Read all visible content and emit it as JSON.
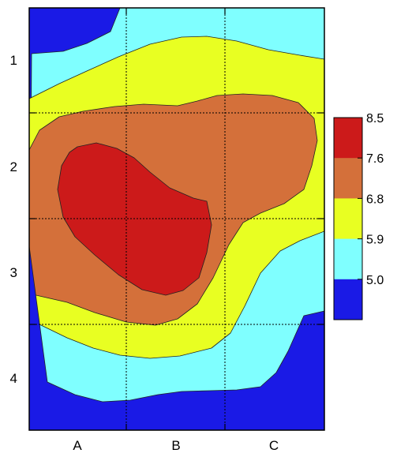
{
  "chart_data": {
    "type": "contour",
    "title": "",
    "xlabel": "",
    "ylabel": "",
    "x_ticks": [
      "A",
      "B",
      "C"
    ],
    "y_ticks": [
      "1",
      "2",
      "3",
      "4"
    ],
    "grid": true,
    "colorbar": {
      "placement": "right",
      "ticks": [
        "8.5",
        "7.6",
        "6.8",
        "5.9",
        "5.0"
      ],
      "levels": [
        {
          "range": [
            8.5,
            7.6
          ],
          "color": "#cc1a1a"
        },
        {
          "range": [
            7.6,
            6.8
          ],
          "color": "#d4703a"
        },
        {
          "range": [
            6.8,
            5.9
          ],
          "color": "#e8ff22"
        },
        {
          "range": [
            5.9,
            5.0
          ],
          "color": "#7fffff"
        },
        {
          "range": [
            5.0,
            4.1
          ],
          "color": "#1a1ae6"
        }
      ]
    },
    "contour_bands": [
      {
        "name": "below-5.0",
        "color": "#1a1ae6"
      },
      {
        "name": "5.0-5.9",
        "color": "#7fffff"
      },
      {
        "name": "5.9-6.8",
        "color": "#e8ff22"
      },
      {
        "name": "6.8-7.6",
        "color": "#d4703a"
      },
      {
        "name": "7.6-8.5",
        "color": "#cc1a1a"
      }
    ]
  }
}
